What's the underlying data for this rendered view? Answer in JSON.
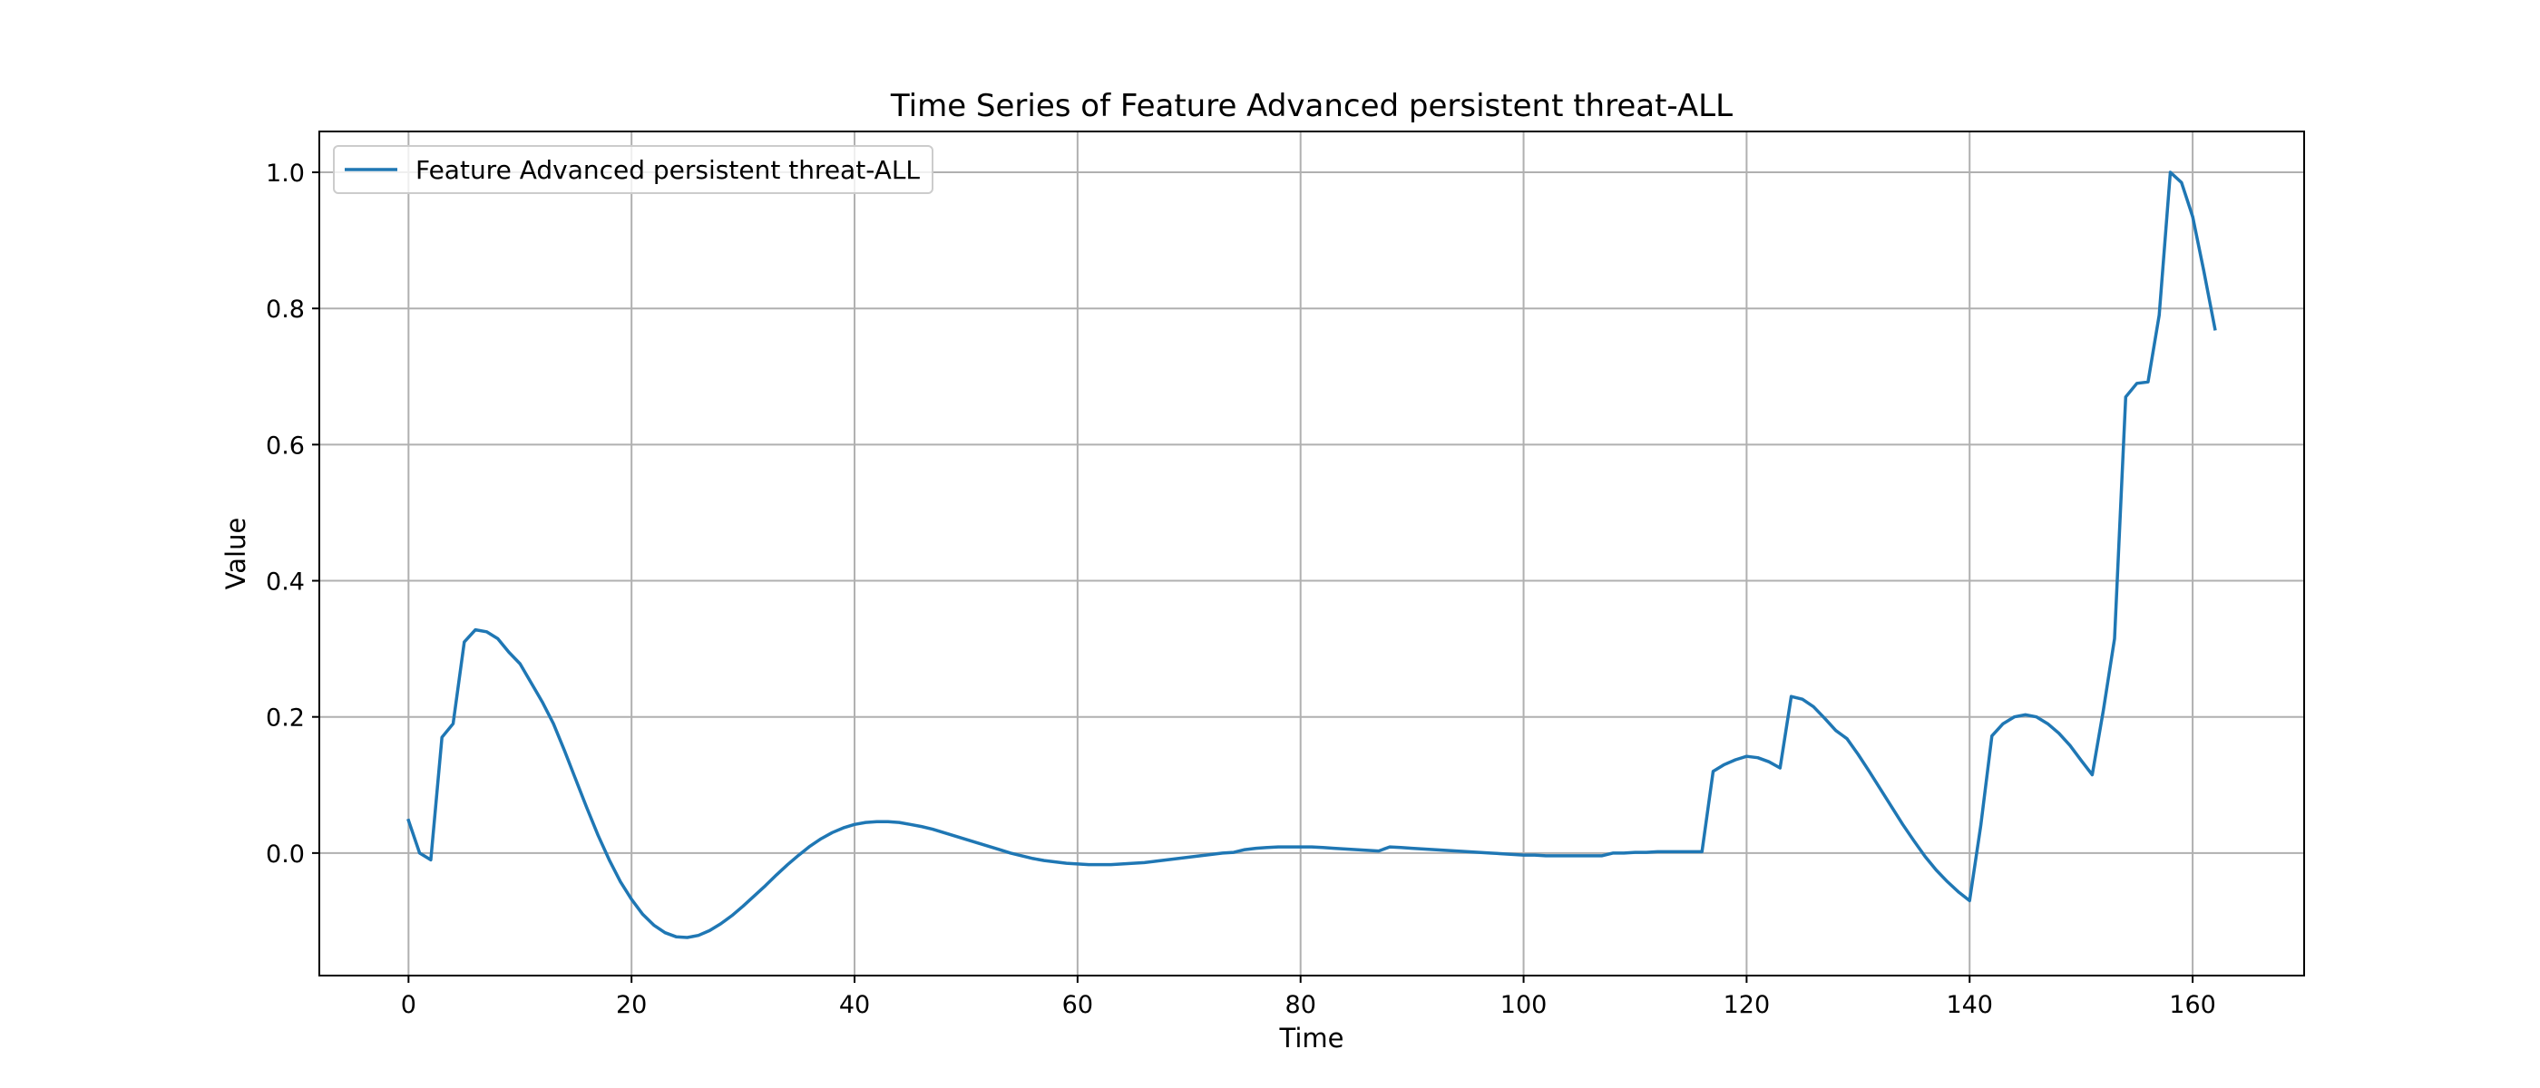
{
  "chart_data": {
    "type": "line",
    "title": "Time Series of Feature Advanced persistent threat-ALL",
    "xlabel": "Time",
    "ylabel": "Value",
    "xlim": [
      -8,
      170
    ],
    "ylim": [
      -0.18,
      1.06
    ],
    "xticks": [
      0,
      20,
      40,
      60,
      80,
      100,
      120,
      140,
      160
    ],
    "yticks": [
      0.0,
      0.2,
      0.4,
      0.6,
      0.8,
      1.0
    ],
    "ytick_labels": [
      "0.0",
      "0.2",
      "0.4",
      "0.6",
      "0.8",
      "1.0"
    ],
    "grid": true,
    "legend_position": "top-left",
    "line_color": "#1f77b4",
    "series": [
      {
        "name": "Feature Advanced persistent threat-ALL",
        "x": [
          0,
          1,
          2,
          3,
          4,
          5,
          6,
          7,
          8,
          9,
          10,
          11,
          12,
          13,
          14,
          15,
          16,
          17,
          18,
          19,
          20,
          21,
          22,
          23,
          24,
          25,
          26,
          27,
          28,
          29,
          30,
          31,
          32,
          33,
          34,
          35,
          36,
          37,
          38,
          39,
          40,
          41,
          42,
          43,
          44,
          45,
          46,
          47,
          48,
          49,
          50,
          51,
          52,
          53,
          54,
          55,
          56,
          57,
          58,
          59,
          60,
          61,
          62,
          63,
          64,
          65,
          66,
          67,
          68,
          69,
          70,
          71,
          72,
          73,
          74,
          75,
          76,
          77,
          78,
          79,
          80,
          81,
          82,
          83,
          84,
          85,
          86,
          87,
          88,
          89,
          90,
          91,
          92,
          93,
          94,
          95,
          96,
          97,
          98,
          99,
          100,
          101,
          102,
          103,
          104,
          105,
          106,
          107,
          108,
          109,
          110,
          111,
          112,
          113,
          114,
          115,
          116,
          117,
          118,
          119,
          120,
          121,
          122,
          123,
          124,
          125,
          126,
          127,
          128,
          129,
          130,
          131,
          132,
          133,
          134,
          135,
          136,
          137,
          138,
          139,
          140,
          141,
          142,
          143,
          144,
          145,
          146,
          147,
          148,
          149,
          150,
          151,
          152,
          153,
          154,
          155,
          156,
          157,
          158,
          159,
          160,
          161,
          162
        ],
        "values": [
          0.048,
          0.0,
          -0.01,
          0.17,
          0.19,
          0.31,
          0.328,
          0.325,
          0.315,
          0.295,
          0.278,
          0.25,
          0.222,
          0.19,
          0.15,
          0.108,
          0.066,
          0.026,
          -0.01,
          -0.042,
          -0.068,
          -0.09,
          -0.106,
          -0.117,
          -0.123,
          -0.124,
          -0.121,
          -0.114,
          -0.104,
          -0.092,
          -0.078,
          -0.063,
          -0.048,
          -0.032,
          -0.017,
          -0.003,
          0.01,
          0.021,
          0.03,
          0.037,
          0.042,
          0.045,
          0.046,
          0.046,
          0.045,
          0.042,
          0.039,
          0.035,
          0.03,
          0.025,
          0.02,
          0.015,
          0.01,
          0.005,
          0.0,
          -0.004,
          -0.008,
          -0.011,
          -0.013,
          -0.015,
          -0.016,
          -0.017,
          -0.017,
          -0.017,
          -0.016,
          -0.015,
          -0.014,
          -0.012,
          -0.01,
          -0.008,
          -0.006,
          -0.004,
          -0.002,
          0.0,
          0.001,
          0.005,
          0.007,
          0.008,
          0.009,
          0.009,
          0.009,
          0.009,
          0.008,
          0.007,
          0.006,
          0.005,
          0.004,
          0.003,
          0.009,
          0.008,
          0.007,
          0.006,
          0.005,
          0.004,
          0.003,
          0.002,
          0.001,
          0.0,
          -0.001,
          -0.002,
          -0.003,
          -0.003,
          -0.004,
          -0.004,
          -0.004,
          -0.004,
          -0.004,
          -0.004,
          0.0,
          0.0,
          0.001,
          0.001,
          0.002,
          0.002,
          0.002,
          0.002,
          0.002,
          0.12,
          0.13,
          0.137,
          0.142,
          0.14,
          0.134,
          0.125,
          0.23,
          0.226,
          0.215,
          0.198,
          0.18,
          0.168,
          0.145,
          0.12,
          0.094,
          0.068,
          0.042,
          0.018,
          -0.005,
          -0.025,
          -0.042,
          -0.057,
          -0.07,
          0.04,
          0.172,
          0.19,
          0.2,
          0.203,
          0.2,
          0.19,
          0.176,
          0.158,
          0.136,
          0.115,
          0.21,
          0.315,
          0.67,
          0.69,
          0.692,
          0.79,
          1.0,
          0.985,
          0.935,
          0.855,
          0.77
        ]
      }
    ]
  }
}
